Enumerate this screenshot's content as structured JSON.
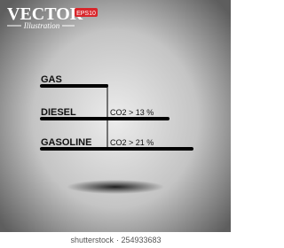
{
  "header": {
    "title": "VECTOR",
    "badge": "EPS10",
    "subtitle": "Illustration"
  },
  "items": [
    {
      "label": "GAS"
    },
    {
      "label": "DIESEL",
      "note": "CO2 > 13 %"
    },
    {
      "label": "GASOLINE",
      "note": "CO2 > 21 %"
    }
  ],
  "footer": {
    "brand": "shutterstock",
    "id": "· 254933683"
  }
}
